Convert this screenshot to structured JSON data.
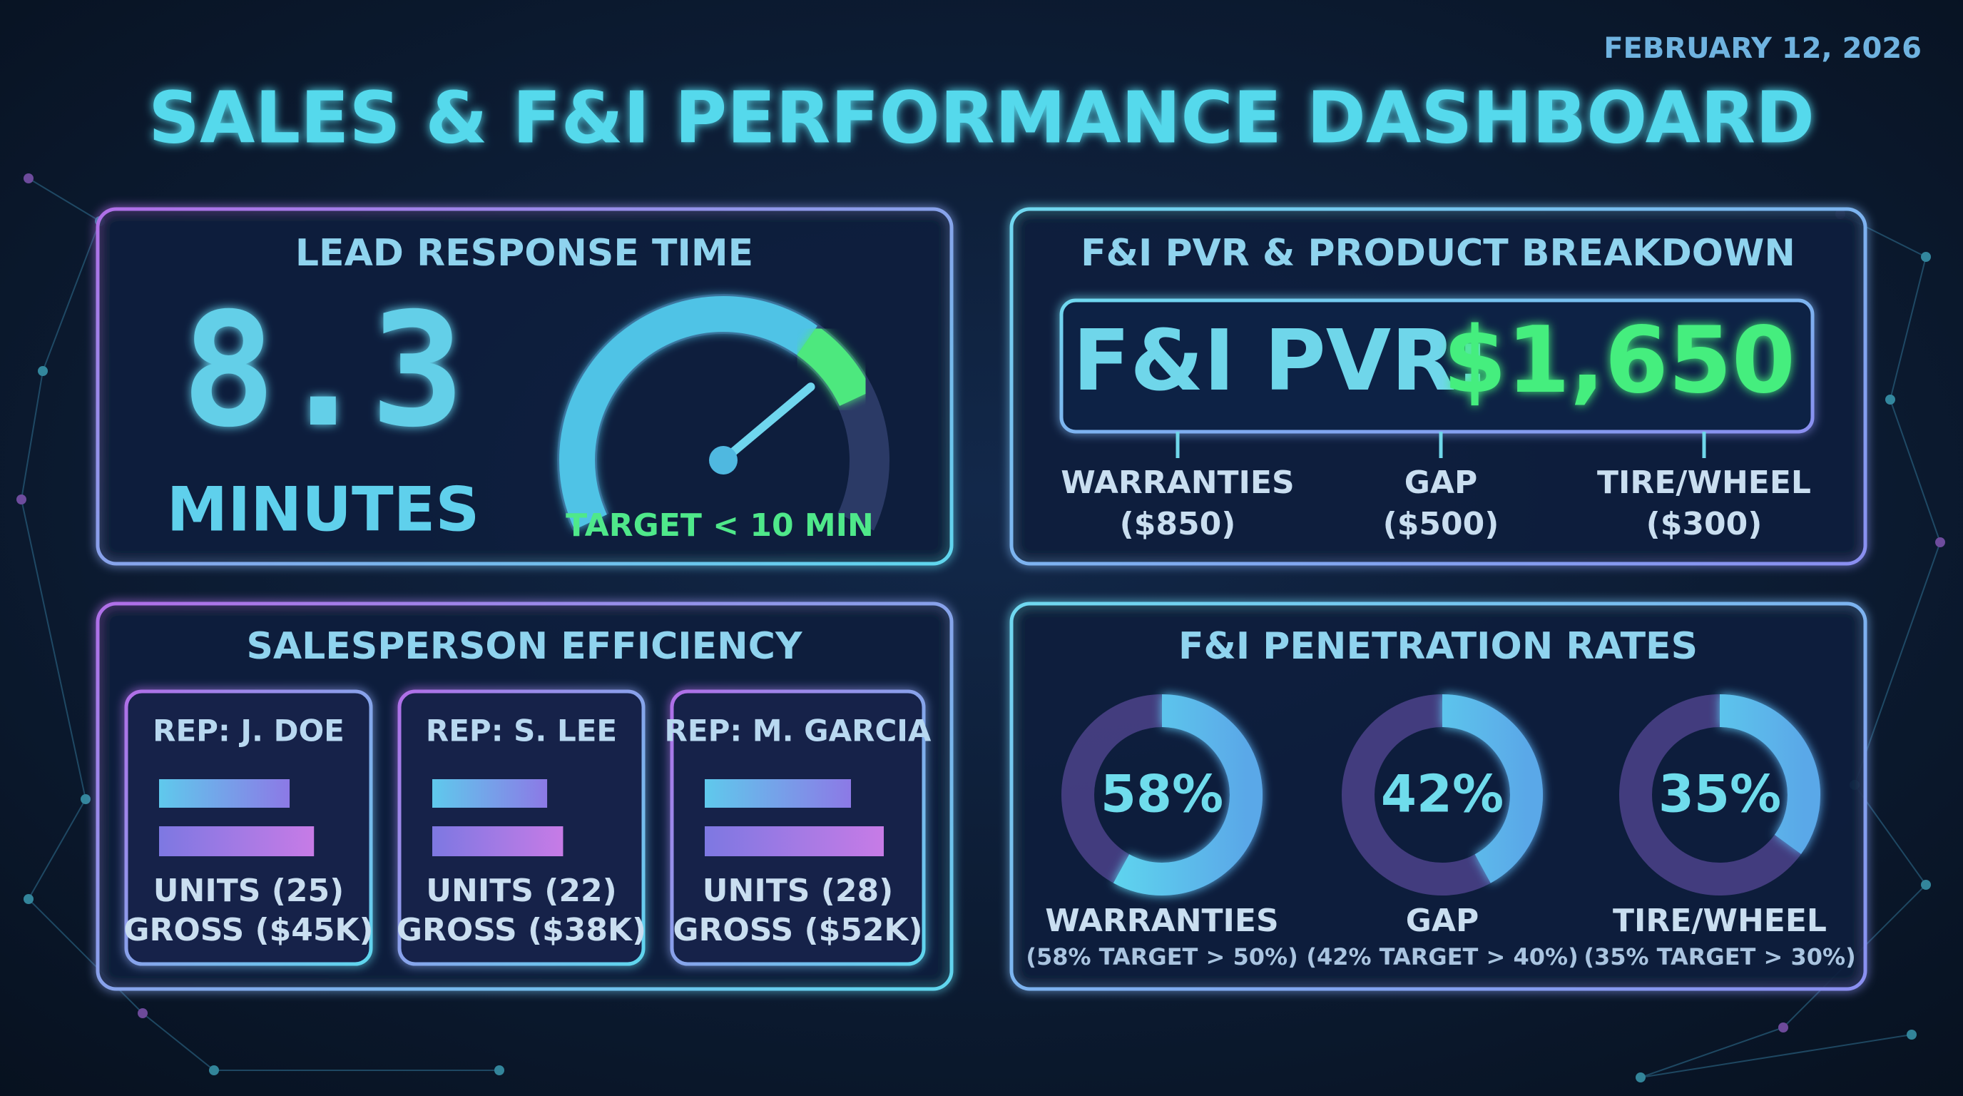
{
  "date": "FEBRUARY 12, 2026",
  "title": "SALES & F&I PERFORMANCE DASHBOARD",
  "lead_response": {
    "title": "LEAD RESPONSE TIME",
    "value": "8.3",
    "unit": "MINUTES",
    "target": "TARGET < 10 MIN"
  },
  "pvr": {
    "title": "F&I PVR & PRODUCT BREAKDOWN",
    "label": "F&I PVR:",
    "amount": "$1,650",
    "products": [
      {
        "name": "WARRANTIES",
        "amount": "($850)"
      },
      {
        "name": "GAP",
        "amount": "($500)"
      },
      {
        "name": "TIRE/WHEEL",
        "amount": "($300)"
      }
    ]
  },
  "efficiency": {
    "title": "SALESPERSON EFFICIENCY",
    "reps": [
      {
        "name": "REP: J. DOE",
        "units": {
          "value": 25,
          "label": "UNITS (25)"
        },
        "gross": {
          "value": 45000,
          "label": "GROSS ($45K)"
        }
      },
      {
        "name": "REP: S. LEE",
        "units": {
          "value": 22,
          "label": "UNITS (22)"
        },
        "gross": {
          "value": 38000,
          "label": "GROSS ($38K)"
        }
      },
      {
        "name": "REP: M. GARCIA",
        "units": {
          "value": 28,
          "label": "UNITS (28)"
        },
        "gross": {
          "value": 52000,
          "label": "GROSS ($52K)"
        }
      }
    ]
  },
  "penetration": {
    "title": "F&I PENETRATION RATES",
    "items": [
      {
        "rate": {
          "value": 58,
          "label": "58%"
        },
        "name": "WARRANTIES",
        "note": "(58% TARGET > 50%)"
      },
      {
        "rate": {
          "value": 42,
          "label": "42%"
        },
        "name": "GAP",
        "note": "(42% TARGET > 40%)"
      },
      {
        "rate": {
          "value": 35,
          "label": "35%"
        },
        "name": "TIRE/WHEEL",
        "note": "(35% TARGET > 30%)"
      }
    ]
  }
}
